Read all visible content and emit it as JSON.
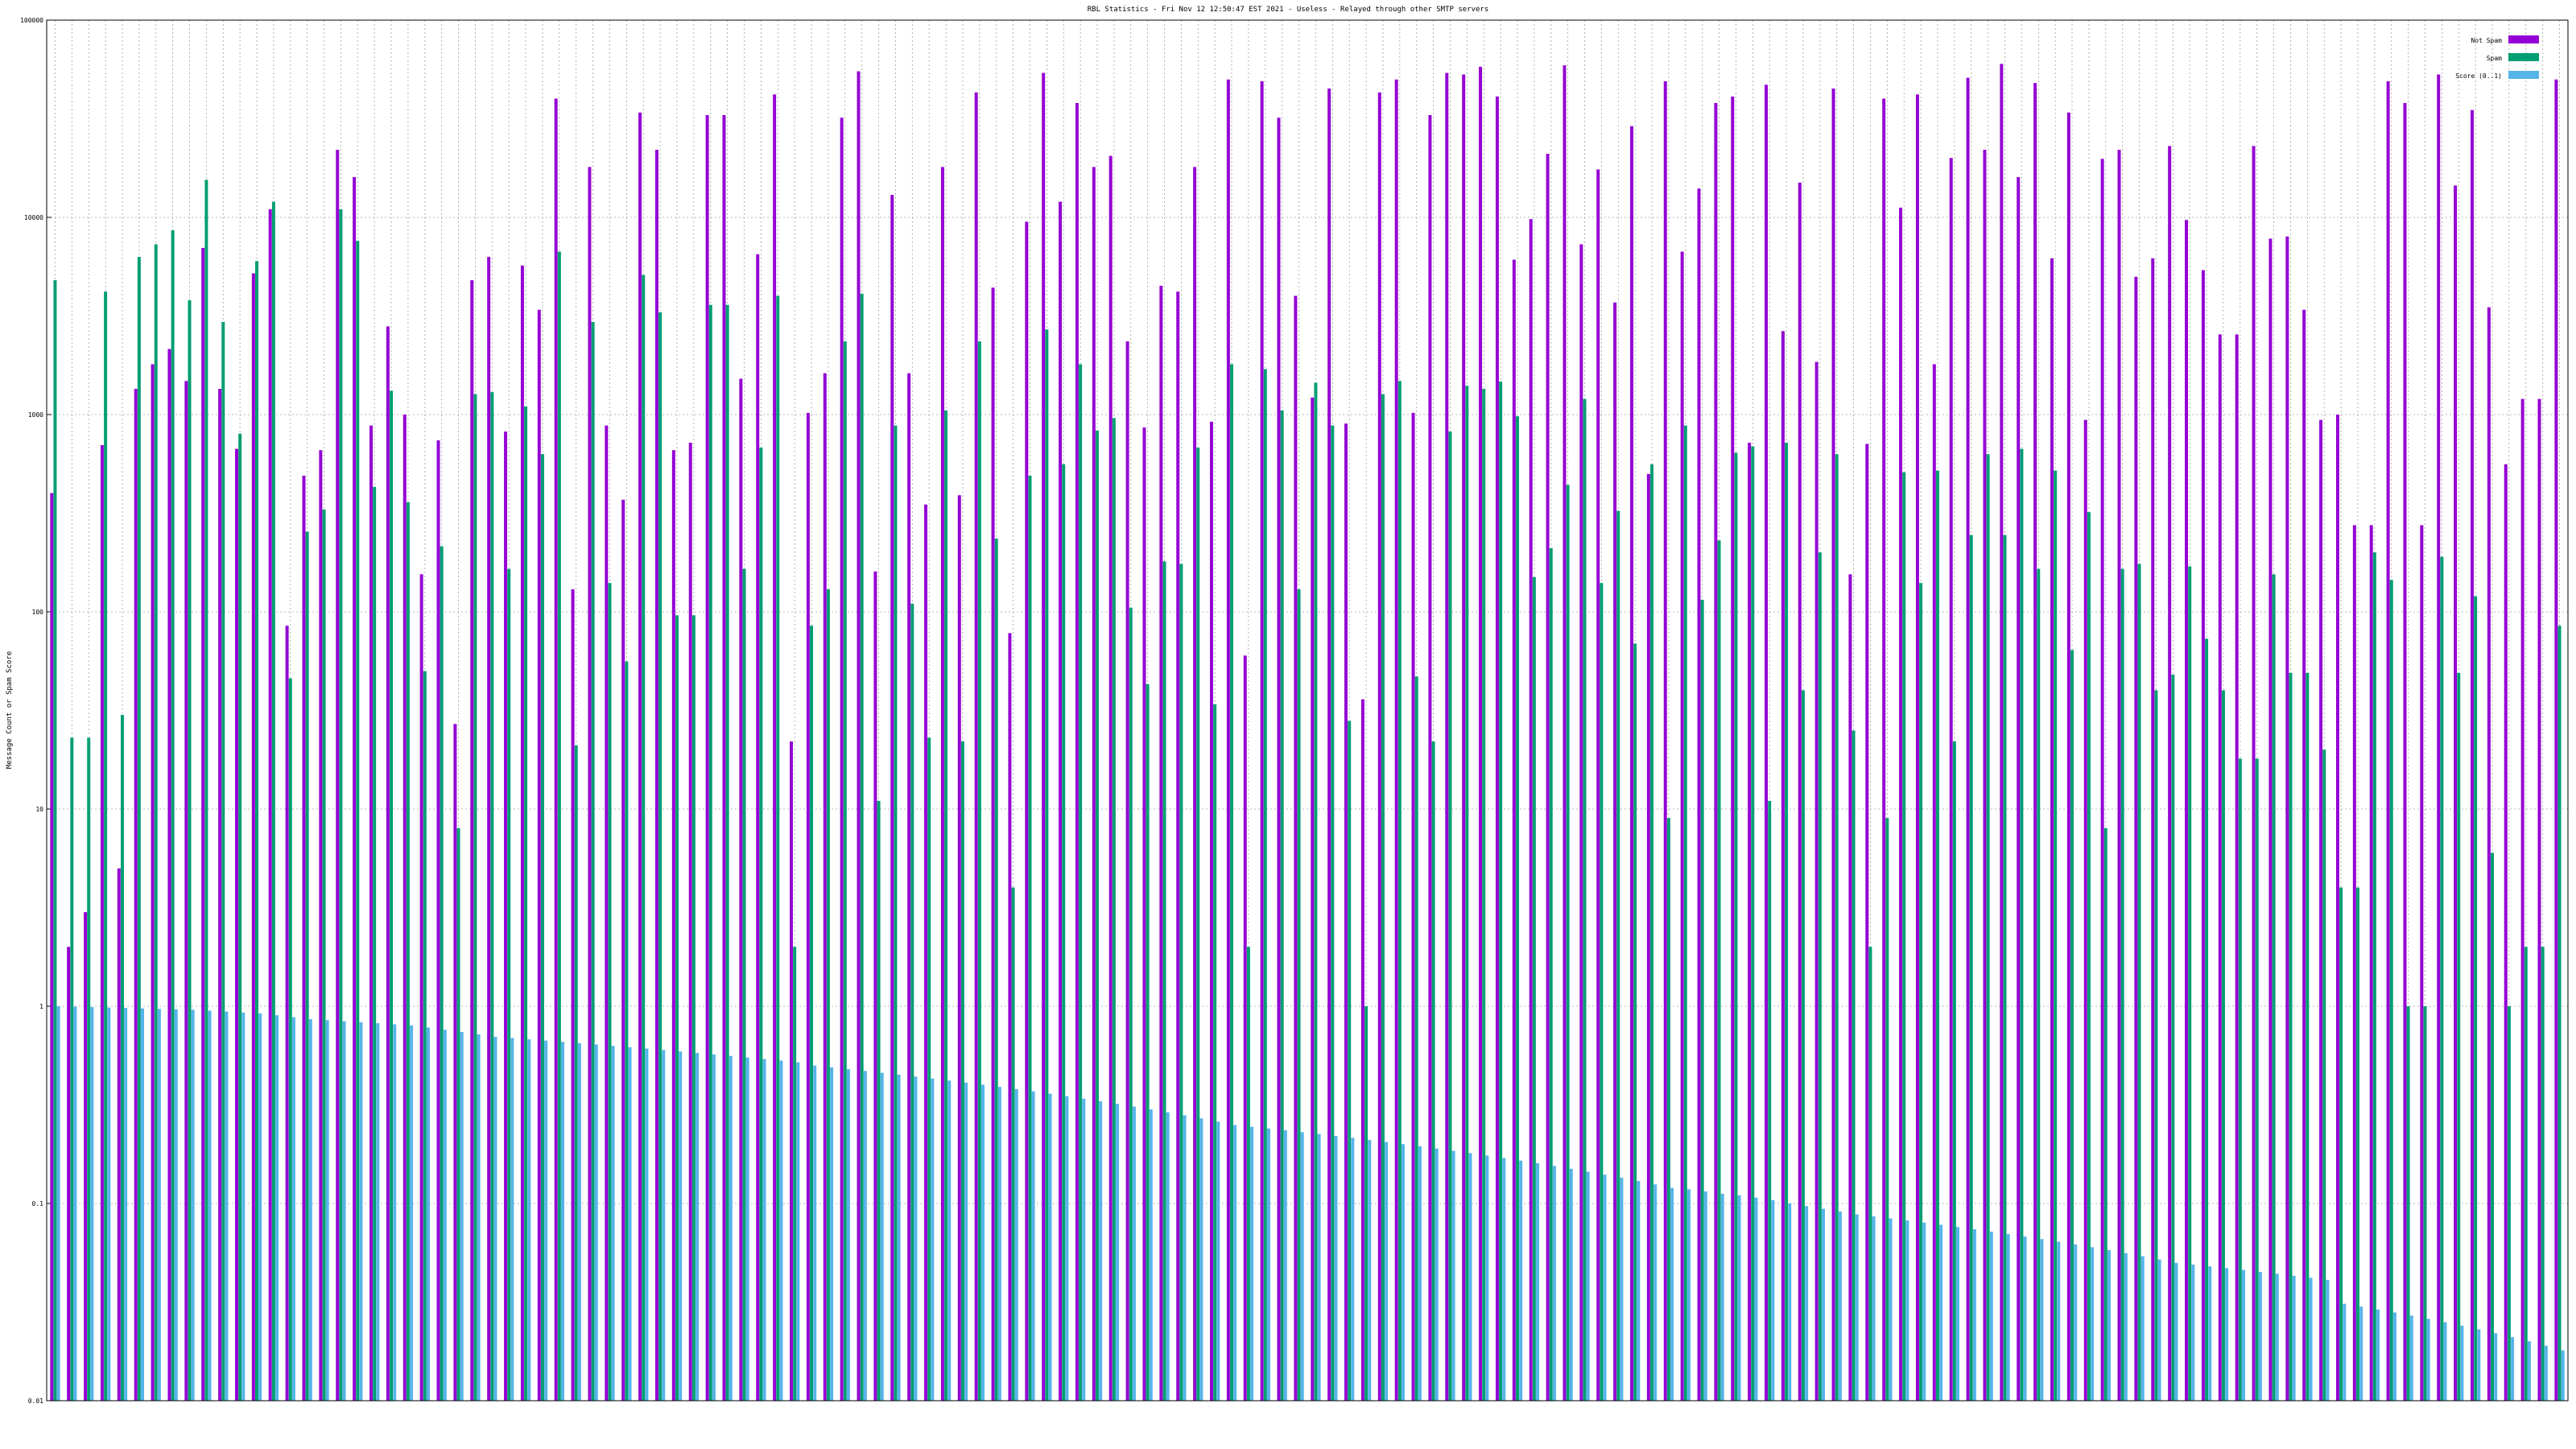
{
  "chart_data": {
    "type": "bar",
    "title": "RBL Statistics - Fri Nov 12 12:50:47 EST 2021 - Useless - Relayed through other SMTP servers",
    "ylabel": "Message Count or Spam Score",
    "xlabel": "",
    "yscale": "log",
    "ylim": [
      0.01,
      100000
    ],
    "yticks": [
      "0.01",
      "0.1",
      "1",
      "10",
      "100",
      "1000",
      "10000",
      "100000"
    ],
    "grid": true,
    "legend_position": "top-right",
    "colors": {
      "not_spam": "#9400d3",
      "spam": "#009e73",
      "score": "#56b4e9"
    },
    "series": [
      {
        "name": "Not Spam",
        "values": [
          400,
          2,
          3,
          700,
          5,
          1350,
          1800,
          2150,
          1480,
          7000,
          1350,
          670,
          5200,
          11000,
          85,
          490,
          660,
          22000,
          16000,
          880,
          2800,
          1000,
          155,
          740,
          27,
          4800,
          6300,
          820,
          5700,
          3400,
          40000,
          130,
          18000,
          880,
          370,
          34000,
          22000,
          660,
          720,
          33000,
          33000,
          1520,
          6500,
          42000,
          22,
          1020,
          1620,
          32000,
          55000,
          160,
          13000,
          1620,
          350,
          18000,
          390,
          43000,
          4400,
          78,
          9500,
          54000,
          12000,
          38000,
          18000,
          20500,
          2350,
          860,
          4500,
          4200,
          18000,
          920,
          50000,
          60,
          49000,
          32000,
          4000,
          1220,
          45000,
          900,
          36,
          43000,
          50000,
          1020,
          33000,
          54000,
          53000,
          58000,
          41000,
          6100,
          9800,
          21000,
          59000,
          7300,
          17500,
          3700,
          29000,
          500,
          49000,
          6700,
          14000,
          38000,
          41000,
          720,
          47000,
          2650,
          15000,
          1850,
          45000,
          155,
          710,
          40000,
          11200,
          42000,
          1800,
          20000,
          51000,
          22000,
          60000,
          16000,
          48000,
          6200,
          34000,
          940,
          19800,
          22000,
          5000,
          6200,
          23000,
          9700,
          5400,
          2550,
          2550,
          23000,
          7800,
          8000,
          3400,
          940,
          1000,
          275,
          275,
          49000,
          38000,
          275,
          53000,
          14500,
          35000,
          3500,
          560,
          1200,
          1200,
          50000
        ]
      },
      {
        "name": "Spam",
        "values": [
          4800,
          23,
          23,
          4200,
          30,
          6300,
          7300,
          8600,
          3800,
          15500,
          2950,
          800,
          6000,
          12000,
          46,
          255,
          330,
          11000,
          7600,
          430,
          1320,
          360,
          50,
          215,
          8,
          1270,
          1300,
          165,
          1100,
          630,
          6700,
          21,
          2950,
          140,
          56,
          5100,
          3300,
          96,
          96,
          3600,
          3600,
          165,
          680,
          4000,
          2,
          85,
          130,
          2350,
          4100,
          11,
          880,
          110,
          23,
          1050,
          22,
          2350,
          235,
          4,
          490,
          2700,
          560,
          1800,
          830,
          960,
          105,
          43,
          180,
          175,
          680,
          34,
          1800,
          2,
          1700,
          1050,
          130,
          1450,
          880,
          28,
          1,
          1270,
          1480,
          47,
          22,
          820,
          1400,
          1350,
          1470,
          980,
          150,
          210,
          440,
          1200,
          140,
          325,
          69,
          560,
          9,
          880,
          115,
          230,
          640,
          690,
          11,
          720,
          40,
          200,
          630,
          25,
          2,
          9,
          510,
          140,
          520,
          22,
          245,
          630,
          245,
          670,
          165,
          520,
          64,
          320,
          8,
          165,
          175,
          40,
          48,
          170,
          73,
          40,
          18,
          18,
          155,
          49,
          49,
          20,
          4,
          4,
          200,
          145,
          1,
          1,
          190,
          49,
          120,
          6,
          1,
          2,
          2,
          85
        ]
      },
      {
        "name": "Score (0..1)",
        "values": [
          1,
          0.995,
          0.99,
          0.985,
          0.98,
          0.975,
          0.97,
          0.965,
          0.96,
          0.95,
          0.94,
          0.93,
          0.92,
          0.9,
          0.88,
          0.86,
          0.85,
          0.84,
          0.83,
          0.82,
          0.81,
          0.8,
          0.78,
          0.76,
          0.74,
          0.72,
          0.7,
          0.69,
          0.68,
          0.67,
          0.66,
          0.65,
          0.64,
          0.63,
          0.62,
          0.61,
          0.6,
          0.59,
          0.58,
          0.57,
          0.56,
          0.55,
          0.54,
          0.53,
          0.52,
          0.5,
          0.49,
          0.48,
          0.47,
          0.46,
          0.45,
          0.44,
          0.43,
          0.42,
          0.41,
          0.4,
          0.39,
          0.38,
          0.37,
          0.36,
          0.35,
          0.34,
          0.33,
          0.32,
          0.31,
          0.3,
          0.29,
          0.28,
          0.27,
          0.26,
          0.25,
          0.245,
          0.24,
          0.235,
          0.23,
          0.225,
          0.22,
          0.215,
          0.21,
          0.205,
          0.2,
          0.195,
          0.19,
          0.185,
          0.18,
          0.175,
          0.17,
          0.165,
          0.16,
          0.155,
          0.15,
          0.145,
          0.14,
          0.135,
          0.13,
          0.125,
          0.12,
          0.118,
          0.115,
          0.112,
          0.11,
          0.107,
          0.104,
          0.1,
          0.097,
          0.094,
          0.091,
          0.088,
          0.086,
          0.084,
          0.082,
          0.08,
          0.078,
          0.076,
          0.074,
          0.072,
          0.07,
          0.068,
          0.066,
          0.064,
          0.062,
          0.06,
          0.058,
          0.056,
          0.054,
          0.052,
          0.05,
          0.049,
          0.048,
          0.047,
          0.046,
          0.045,
          0.044,
          0.043,
          0.042,
          0.041,
          0.031,
          0.03,
          0.029,
          0.028,
          0.027,
          0.026,
          0.025,
          0.024,
          0.023,
          0.022,
          0.021,
          0.02,
          0.019,
          0.018
        ]
      }
    ]
  }
}
